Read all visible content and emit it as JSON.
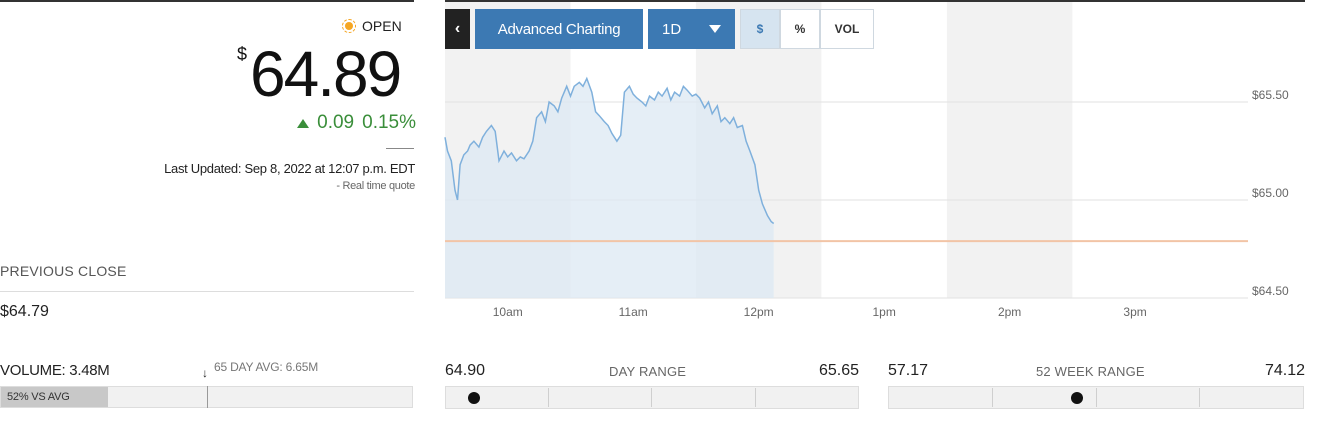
{
  "status": {
    "label": "OPEN",
    "icon": "sun-icon"
  },
  "quote": {
    "currency_symbol": "$",
    "price": "64.89",
    "change": "0.09",
    "change_percent": "0.15%",
    "last_updated": "Last Updated: Sep 8, 2022 at 12:07 p.m. EDT",
    "realtime_note": "Real time quote"
  },
  "previous_close": {
    "label": "PREVIOUS CLOSE",
    "value": "$64.79"
  },
  "volume": {
    "label": "VOLUME: 3.48M",
    "avg_label": "65 DAY AVG: 6.65M",
    "vs_avg_label": "52% VS AVG",
    "vs_avg_fraction": 0.26
  },
  "toolbar": {
    "back_label": "‹",
    "advanced_label": "Advanced Charting",
    "range_label": "1D",
    "dollar_label": "$",
    "percent_label": "%",
    "vol_label": "VOL"
  },
  "chart_data": {
    "type": "area",
    "x_tick_labels": [
      "10am",
      "11am",
      "12pm",
      "1pm",
      "2pm",
      "3pm"
    ],
    "y_tick_labels": [
      "$65.50",
      "$65.00",
      "$64.50"
    ],
    "y_ticks": [
      65.5,
      65.0,
      64.5
    ],
    "ylim": [
      64.5,
      65.5
    ],
    "x_hours_range": [
      9.5,
      15.9
    ],
    "previous_close": 64.79,
    "series": [
      {
        "x": [
          9.5,
          9.52,
          9.55,
          9.58,
          9.6,
          9.62,
          9.65,
          9.68,
          9.7,
          9.73,
          9.77,
          9.8,
          9.83,
          9.87,
          9.9,
          9.93,
          9.97,
          10.0,
          10.03,
          10.07,
          10.1,
          10.13,
          10.17,
          10.2,
          10.23,
          10.27,
          10.3,
          10.33,
          10.37,
          10.4,
          10.43,
          10.47,
          10.5,
          10.53,
          10.57,
          10.6,
          10.63,
          10.67,
          10.7,
          10.73,
          10.77,
          10.8,
          10.83,
          10.87,
          10.9,
          10.93,
          10.97,
          11.0,
          11.03,
          11.07,
          11.1,
          11.13,
          11.17,
          11.2,
          11.23,
          11.27,
          11.3,
          11.33,
          11.37,
          11.4,
          11.43,
          11.47,
          11.5,
          11.53,
          11.57,
          11.6,
          11.63,
          11.67,
          11.7,
          11.73,
          11.77,
          11.8,
          11.83,
          11.87,
          11.9,
          11.93,
          11.97,
          12.0,
          12.03,
          12.07,
          12.1,
          12.12
        ],
        "y": [
          65.32,
          65.25,
          65.2,
          65.05,
          65.0,
          65.18,
          65.23,
          65.25,
          65.28,
          65.3,
          65.27,
          65.32,
          65.35,
          65.38,
          65.35,
          65.2,
          65.25,
          65.22,
          65.24,
          65.2,
          65.22,
          65.21,
          65.25,
          65.3,
          65.42,
          65.45,
          65.4,
          65.5,
          65.48,
          65.45,
          65.52,
          65.58,
          65.53,
          65.58,
          65.6,
          65.58,
          65.62,
          65.55,
          65.45,
          65.43,
          65.4,
          65.38,
          65.34,
          65.3,
          65.33,
          65.55,
          65.58,
          65.54,
          65.52,
          65.5,
          65.48,
          65.53,
          65.51,
          65.55,
          65.53,
          65.57,
          65.51,
          65.55,
          65.53,
          65.58,
          65.56,
          65.53,
          65.54,
          65.52,
          65.47,
          65.5,
          65.44,
          65.48,
          65.4,
          65.42,
          65.39,
          65.42,
          65.37,
          65.38,
          65.3,
          65.25,
          65.18,
          65.05,
          64.98,
          64.92,
          64.89,
          64.88
        ]
      }
    ],
    "colors": {
      "line": "#7fb0dc",
      "fill": "#dce8f3",
      "prev_close": "#f2c4a6",
      "band": "#f2f2f2"
    }
  },
  "day_range": {
    "label": "DAY RANGE",
    "low": "64.90",
    "high": "65.65",
    "position_fraction": 0.03
  },
  "week52_range": {
    "label": "52 WEEK RANGE",
    "low": "57.17",
    "high": "74.12",
    "position_fraction": 0.45
  }
}
